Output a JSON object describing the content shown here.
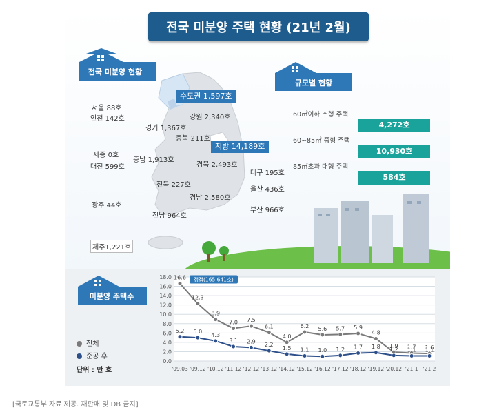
{
  "title": "전국 미분양 주택 현황 (21년 2월)",
  "map_section": {
    "header": "전국 미분양 현황",
    "capital_tag": "수도권 1,597호",
    "local_tag": "지방 14,189호",
    "regions": [
      {
        "name": "서울 88호"
      },
      {
        "name": "인천 142호"
      },
      {
        "name": "경기 1,367호"
      },
      {
        "name": "강원 2,340호"
      },
      {
        "name": "충북 211호"
      },
      {
        "name": "세종 0호"
      },
      {
        "name": "충남 1,913호"
      },
      {
        "name": "대전 599호"
      },
      {
        "name": "경북 2,493호"
      },
      {
        "name": "대구 195호"
      },
      {
        "name": "전북 227호"
      },
      {
        "name": "울산 436호"
      },
      {
        "name": "경남 2,580호"
      },
      {
        "name": "광주 44호"
      },
      {
        "name": "부산 966호"
      },
      {
        "name": "전남 964호"
      },
      {
        "name": "제주1,221호"
      }
    ]
  },
  "size_section": {
    "header": "규모별 현황",
    "items": [
      {
        "label": "60㎡이하 소형 주택",
        "value": "4,272호"
      },
      {
        "label": "60~85㎡ 중형 주택",
        "value": "10,930호"
      },
      {
        "label": "85㎡초과 대형 주택",
        "value": "584호"
      }
    ]
  },
  "chart_section": {
    "header": "미분양 주택수",
    "legend_all": "전체",
    "legend_after": "준공 후",
    "unit": "단위 : 만 호",
    "peak_label": "정점(165,641호)"
  },
  "chart_data": {
    "type": "line",
    "x": [
      "'09.03",
      "'09.12",
      "'10.12",
      "'11.12",
      "'12.12",
      "'13.12",
      "'14.12",
      "'15.12",
      "'16.12",
      "'17.12",
      "'18.12",
      "'19.12",
      "'20.12",
      "'21.1",
      "'21.2"
    ],
    "series": [
      {
        "name": "전체",
        "values": [
          16.6,
          12.3,
          8.9,
          7.0,
          7.5,
          6.1,
          4.0,
          6.2,
          5.6,
          5.7,
          5.9,
          4.8,
          1.9,
          1.7,
          1.6
        ],
        "labels": [
          "16.6",
          "12.3",
          "8.9",
          "7.0",
          "7.5",
          "6.1",
          "4.0",
          "6.2",
          "5.6",
          "5.7",
          "5.9",
          "4.8",
          "1.9",
          "1.7",
          "1.6"
        ],
        "color": "#7a7a7a"
      },
      {
        "name": "준공 후",
        "values": [
          5.2,
          5.0,
          4.3,
          3.1,
          2.9,
          2.2,
          1.5,
          1.1,
          1.0,
          1.2,
          1.7,
          1.8,
          1.2,
          1.1,
          1.1
        ],
        "labels": [
          "5.2",
          "5.0",
          "4.3",
          "3.1",
          "2.9",
          "2.2",
          "1.5",
          "1.1",
          "1.0",
          "1.2",
          "1.7",
          "1.8",
          "1.2",
          "1.1",
          "1.1"
        ],
        "color": "#2d4f8a"
      }
    ],
    "ylim": [
      0,
      18
    ],
    "yticks": [
      "0.0",
      "2.0",
      "4.0",
      "6.0",
      "8.0",
      "10.0",
      "12.0",
      "14.0",
      "16.0",
      "18.0"
    ],
    "grid": true
  },
  "caption": "[국토교통부 자료 제공. 재판매 및 DB 금지]"
}
